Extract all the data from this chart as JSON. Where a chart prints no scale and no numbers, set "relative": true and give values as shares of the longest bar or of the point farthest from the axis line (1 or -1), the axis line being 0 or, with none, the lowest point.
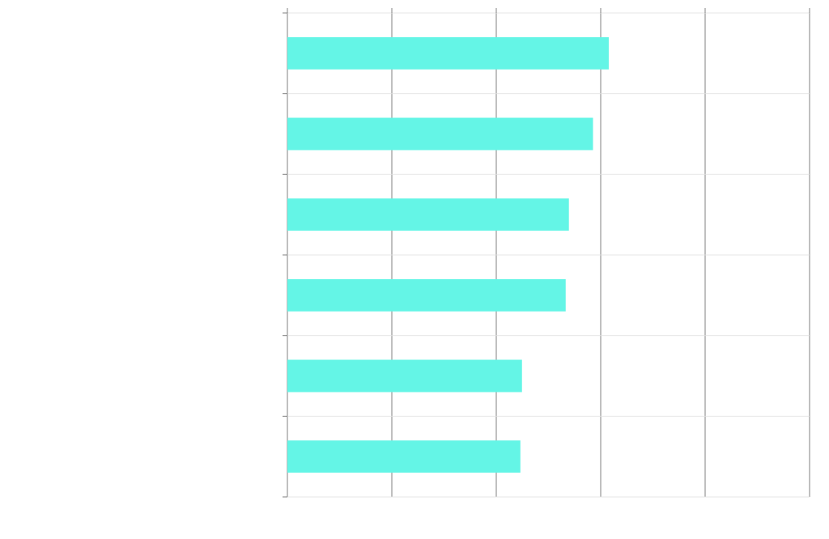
{
  "chart_data": {
    "type": "bar",
    "orientation": "horizontal",
    "relative": true,
    "categories": [
      null,
      null,
      null,
      null,
      null,
      null
    ],
    "values": [
      1,
      0.951,
      0.876,
      0.866,
      0.73,
      0.725
    ],
    "color": "#64f5e6",
    "grid": true
  }
}
